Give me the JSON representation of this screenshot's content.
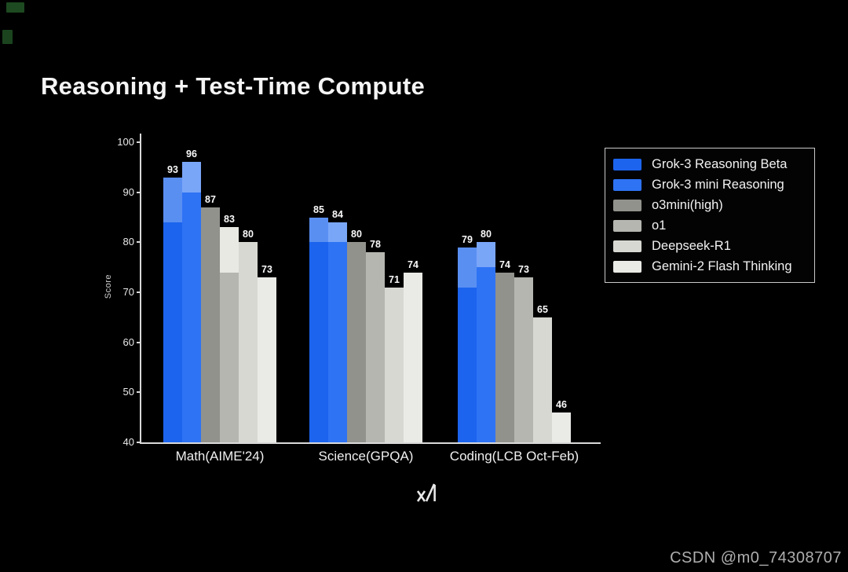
{
  "title": "Reasoning + Test-Time Compute",
  "watermark": "CSDN @m0_74308707",
  "logo": {
    "name": "xAI"
  },
  "colors": {
    "background": "#000000",
    "axis": "#d9d9d9",
    "grok3_blue": "#1c64ee",
    "grok3_mini_blue": "#2e73f4",
    "legend_border": "#c9c9c9"
  },
  "chart_data": {
    "type": "bar",
    "title": "Reasoning + Test-Time Compute",
    "xlabel": "",
    "ylabel": "Score",
    "ylim": [
      40,
      100
    ],
    "yticks": [
      40,
      50,
      60,
      70,
      80,
      90,
      100
    ],
    "grid": false,
    "legend_position": "upper right",
    "categories": [
      "Math(AIME'24)",
      "Science(GPQA)",
      "Coding(LCB Oct-Feb)"
    ],
    "series": [
      {
        "name": "Grok-3 Reasoning Beta",
        "color": "#1c64ee",
        "ext_color": "#5a8ff2",
        "values": [
          93,
          85,
          79
        ],
        "base_values": [
          84,
          80,
          71
        ]
      },
      {
        "name": "Grok-3 mini Reasoning",
        "color": "#2e73f4",
        "ext_color": "#7aa6f8",
        "values": [
          96,
          84,
          80
        ],
        "base_values": [
          90,
          80,
          75
        ]
      },
      {
        "name": "o3mini(high)",
        "color": "#92928d",
        "ext_color": "#92928d",
        "values": [
          87,
          80,
          74
        ],
        "base_values": [
          87,
          80,
          74
        ]
      },
      {
        "name": "o1",
        "color": "#b6b6b1",
        "ext_color": "#e9e9e4",
        "values": [
          83,
          78,
          73
        ],
        "base_values": [
          74,
          78,
          73
        ]
      },
      {
        "name": "Deepseek-R1",
        "color": "#d8d8d3",
        "ext_color": "#d8d8d3",
        "values": [
          80,
          71,
          65
        ],
        "base_values": [
          80,
          71,
          65
        ]
      },
      {
        "name": "Gemini-2 Flash Thinking",
        "color": "#eaeae6",
        "ext_color": "#eaeae6",
        "values": [
          73,
          74,
          46
        ],
        "base_values": [
          73,
          74,
          46
        ]
      }
    ]
  }
}
